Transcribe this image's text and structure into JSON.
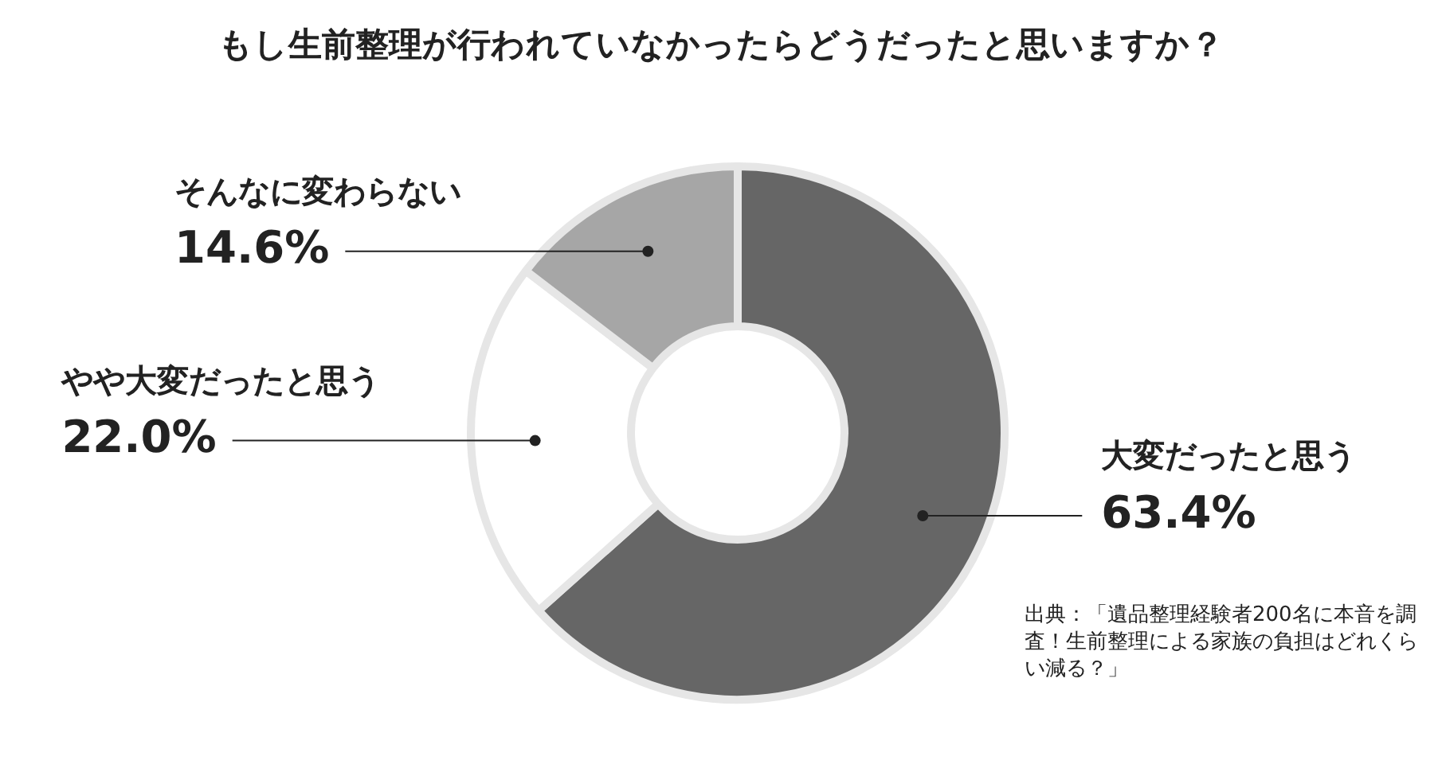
{
  "chart_data": {
    "type": "donut",
    "title": "もし生前整理が行われていなかったらどうだったと思いますか？",
    "categories": [
      "大変だったと思う",
      "やや大変だったと思う",
      "そんなに変わらない"
    ],
    "values": [
      63.4,
      22.0,
      14.6
    ],
    "colors": [
      "#666666",
      "#ffffff",
      "#a6a6a6"
    ],
    "value_labels": [
      "63.4%",
      "22.0%",
      "14.6%"
    ],
    "legend": false,
    "annotations": [
      "出典：「遺品整理経験者200名に本音を調査！生前整理による家族の負担はどれくらい減る？」"
    ]
  }
}
